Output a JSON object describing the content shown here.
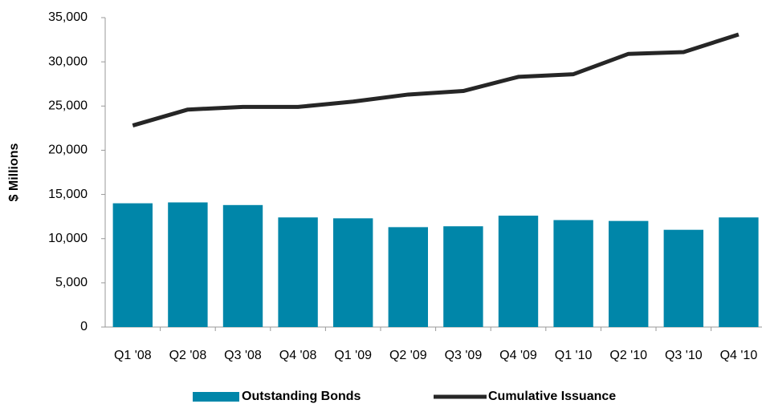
{
  "chart_data": {
    "type": "bar_line",
    "y_label": "$ Millions",
    "categories": [
      "Q1 '08",
      "Q2 '08",
      "Q3 '08",
      "Q4 '08",
      "Q1 '09",
      "Q2 '09",
      "Q3 '09",
      "Q4 '09",
      "Q1 '10",
      "Q2 '10",
      "Q3 '10",
      "Q4 '10"
    ],
    "series": [
      {
        "name": "Outstanding Bonds",
        "type": "bar",
        "color": "#0086a9",
        "values": [
          14000,
          14100,
          13800,
          12400,
          12300,
          11300,
          11400,
          12600,
          12100,
          12000,
          11000,
          12400
        ]
      },
      {
        "name": "Cumulative Issuance",
        "type": "line",
        "color": "#262626",
        "values": [
          22800,
          24600,
          24900,
          24900,
          25500,
          26300,
          26700,
          28300,
          28600,
          30900,
          31100,
          33100
        ]
      }
    ],
    "ylim": [
      0,
      35000
    ],
    "yticks": [
      0,
      {
        "value": 5000,
        "label": "5,000"
      },
      {
        "value": 10000,
        "label": "10,000"
      },
      {
        "value": 15000,
        "label": "15,000"
      },
      {
        "value": 20000,
        "label": "20,000"
      },
      {
        "value": 25000,
        "label": "25,000"
      },
      {
        "value": 30000,
        "label": "30,000"
      },
      {
        "value": 35000,
        "label": "35,000"
      }
    ],
    "grid": false,
    "legend": "bottom"
  }
}
